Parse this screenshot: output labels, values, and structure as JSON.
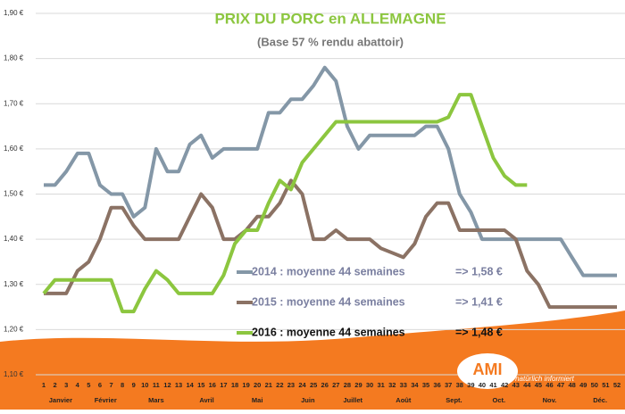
{
  "chart_data": {
    "type": "line",
    "title": "PRIX DU PORC en ALLEMAGNE",
    "subtitle": "(Base 57 % rendu abattoir)",
    "x": [
      1,
      2,
      3,
      4,
      5,
      6,
      7,
      8,
      9,
      10,
      11,
      12,
      13,
      14,
      15,
      16,
      17,
      18,
      19,
      20,
      21,
      22,
      23,
      24,
      25,
      26,
      27,
      28,
      29,
      30,
      31,
      32,
      33,
      34,
      35,
      36,
      37,
      38,
      39,
      40,
      41,
      42,
      43,
      44,
      45,
      46,
      47,
      48,
      49,
      50,
      51,
      52
    ],
    "xlim": [
      1,
      52
    ],
    "month_labels": [
      {
        "label": "Janvier",
        "start": 1,
        "end": 4
      },
      {
        "label": "Février",
        "start": 5,
        "end": 8
      },
      {
        "label": "Mars",
        "start": 9,
        "end": 13
      },
      {
        "label": "Avril",
        "start": 14,
        "end": 17
      },
      {
        "label": "Mai",
        "start": 18,
        "end": 22
      },
      {
        "label": "Juin",
        "start": 23,
        "end": 26
      },
      {
        "label": "Juillet",
        "start": 27,
        "end": 30
      },
      {
        "label": "Août",
        "start": 31,
        "end": 35
      },
      {
        "label": "Sept.",
        "start": 36,
        "end": 39
      },
      {
        "label": "Oct.",
        "start": 40,
        "end": 43
      },
      {
        "label": "Nov.",
        "start": 44,
        "end": 48
      },
      {
        "label": "Déc.",
        "start": 49,
        "end": 52
      }
    ],
    "ylim": [
      1.1,
      1.9
    ],
    "yticks": [
      {
        "value": 1.1,
        "label": "1,10 €"
      },
      {
        "value": 1.2,
        "label": "1,20 €"
      },
      {
        "value": 1.3,
        "label": "1,30 €"
      },
      {
        "value": 1.4,
        "label": "1,40 €"
      },
      {
        "value": 1.5,
        "label": "1,50 €"
      },
      {
        "value": 1.6,
        "label": "1,60 €"
      },
      {
        "value": 1.7,
        "label": "1,70 €"
      },
      {
        "value": 1.8,
        "label": "1,80 €"
      },
      {
        "value": 1.9,
        "label": "1,90 €"
      }
    ],
    "grid": true,
    "series": [
      {
        "name": "2014 : moyenne 44 semaines",
        "average_label": "=> 1,58 €",
        "color": "#8497a7",
        "values": [
          1.52,
          1.52,
          1.55,
          1.59,
          1.59,
          1.52,
          1.5,
          1.5,
          1.45,
          1.47,
          1.6,
          1.55,
          1.55,
          1.61,
          1.63,
          1.58,
          1.6,
          1.6,
          1.6,
          1.6,
          1.68,
          1.68,
          1.71,
          1.71,
          1.74,
          1.78,
          1.75,
          1.65,
          1.6,
          1.63,
          1.63,
          1.63,
          1.63,
          1.63,
          1.65,
          1.65,
          1.6,
          1.5,
          1.46,
          1.4,
          1.4,
          1.4,
          1.4,
          1.4,
          1.4,
          1.4,
          1.4,
          1.36,
          1.32,
          1.32,
          1.32,
          1.32
        ]
      },
      {
        "name": "2015 : moyenne 44 semaines",
        "average_label": "=> 1,41 €",
        "color": "#8b7264",
        "values": [
          1.28,
          1.28,
          1.28,
          1.33,
          1.35,
          1.4,
          1.47,
          1.47,
          1.43,
          1.4,
          1.4,
          1.4,
          1.4,
          1.45,
          1.5,
          1.47,
          1.4,
          1.4,
          1.42,
          1.45,
          1.45,
          1.48,
          1.53,
          1.5,
          1.4,
          1.4,
          1.42,
          1.4,
          1.4,
          1.4,
          1.38,
          1.37,
          1.36,
          1.39,
          1.45,
          1.48,
          1.48,
          1.42,
          1.42,
          1.42,
          1.42,
          1.42,
          1.4,
          1.33,
          1.3,
          1.25,
          1.25,
          1.25,
          1.25,
          1.25,
          1.25,
          1.25
        ]
      },
      {
        "name": "2016 : moyenne 44 semaines",
        "average_label": "=> 1,48 €",
        "color": "#8cc63f",
        "values": [
          1.28,
          1.31,
          1.31,
          1.31,
          1.31,
          1.31,
          1.31,
          1.24,
          1.24,
          1.29,
          1.33,
          1.31,
          1.28,
          1.28,
          1.28,
          1.28,
          1.32,
          1.39,
          1.42,
          1.42,
          1.48,
          1.53,
          1.51,
          1.57,
          1.6,
          1.63,
          1.66,
          1.66,
          1.66,
          1.66,
          1.66,
          1.66,
          1.66,
          1.66,
          1.66,
          1.66,
          1.67,
          1.72,
          1.72,
          1.65,
          1.58,
          1.54,
          1.52,
          1.52,
          null,
          null,
          null,
          null,
          null,
          null,
          null,
          null
        ]
      }
    ],
    "logo": {
      "text": "AMI",
      "tagline": "natürlich informiert"
    }
  }
}
